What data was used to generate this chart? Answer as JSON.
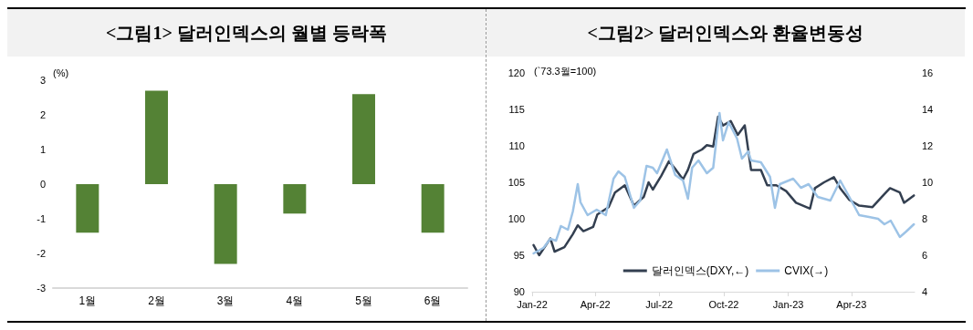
{
  "chart_data": [
    {
      "type": "bar",
      "title": "<그림1> 달러인덱스의 월별 등락폭",
      "ylabel": "(%)",
      "categories": [
        "1월",
        "2월",
        "3월",
        "4월",
        "5월",
        "6월"
      ],
      "values": [
        -1.4,
        2.7,
        -2.3,
        -0.85,
        2.6,
        -1.4
      ],
      "color": "#548235",
      "ylim": [
        -3,
        3
      ],
      "yticks": [
        -3,
        -2,
        -1,
        0,
        1,
        2,
        3
      ],
      "grid": false,
      "legend": false
    },
    {
      "type": "line",
      "title": "<그림2> 달러인덱스와 환율변동성",
      "ylabel": "(`73.3월=100)",
      "xlim": [
        "2022-01-01",
        "2023-06-30"
      ],
      "xticks": [
        {
          "value": "2022-01-01",
          "label": "Jan-22"
        },
        {
          "value": "2022-04-01",
          "label": "Apr-22"
        },
        {
          "value": "2022-07-01",
          "label": "Jul-22"
        },
        {
          "value": "2022-10-01",
          "label": "Oct-22"
        },
        {
          "value": "2023-01-01",
          "label": "Jan-23"
        },
        {
          "value": "2023-04-01",
          "label": "Apr-23"
        }
      ],
      "ylim": [
        90,
        120
      ],
      "yticks": [
        90,
        95,
        100,
        105,
        110,
        115,
        120
      ],
      "y2lim": [
        4,
        16
      ],
      "y2ticks": [
        4,
        6,
        8,
        10,
        12,
        14,
        16
      ],
      "grid": false,
      "legend": "bottom",
      "line_style": "solid",
      "marker": "none",
      "series": [
        {
          "name": "달러인덱스(DXY,←)",
          "color": "#333f50",
          "x": [
            "2022-01-03",
            "2022-01-11",
            "2022-01-27",
            "2022-02-02",
            "2022-02-16",
            "2022-02-28",
            "2022-03-07",
            "2022-03-15",
            "2022-03-29",
            "2022-04-04",
            "2022-04-20",
            "2022-04-29",
            "2022-05-13",
            "2022-05-26",
            "2022-06-09",
            "2022-06-16",
            "2022-06-22",
            "2022-07-04",
            "2022-07-15",
            "2022-07-25",
            "2022-08-04",
            "2022-08-11",
            "2022-08-19",
            "2022-08-31",
            "2022-09-07",
            "2022-09-16",
            "2022-09-23",
            "2022-09-30",
            "2022-10-11",
            "2022-10-21",
            "2022-10-31",
            "2022-11-09",
            "2022-11-23",
            "2022-12-02",
            "2022-12-15",
            "2022-12-29",
            "2023-01-12",
            "2023-02-01",
            "2023-02-08",
            "2023-02-21",
            "2023-03-07",
            "2023-03-16",
            "2023-03-29",
            "2023-04-12",
            "2023-05-01",
            "2023-05-18",
            "2023-05-26",
            "2023-06-09",
            "2023-06-15",
            "2023-06-29"
          ],
          "values": [
            96.4,
            95.0,
            97.3,
            95.5,
            96.1,
            97.9,
            99.1,
            98.3,
            98.9,
            100.6,
            101.6,
            103.6,
            104.6,
            101.8,
            103.0,
            105.0,
            104.0,
            105.9,
            107.9,
            106.7,
            105.4,
            106.7,
            108.9,
            109.5,
            110.1,
            109.9,
            114.0,
            112.8,
            113.4,
            111.5,
            112.8,
            106.7,
            106.7,
            104.6,
            104.6,
            103.8,
            102.2,
            101.4,
            104.2,
            105.0,
            105.7,
            104.2,
            102.6,
            101.8,
            101.6,
            103.4,
            104.2,
            103.6,
            102.2,
            103.2
          ]
        },
        {
          "name": "CVIX(→)",
          "color": "#9dc3e6",
          "axis": "y2",
          "x": [
            "2022-01-03",
            "2022-01-17",
            "2022-01-27",
            "2022-02-04",
            "2022-02-11",
            "2022-02-21",
            "2022-02-28",
            "2022-03-07",
            "2022-03-11",
            "2022-03-21",
            "2022-04-03",
            "2022-04-16",
            "2022-04-27",
            "2022-05-04",
            "2022-05-13",
            "2022-05-26",
            "2022-06-04",
            "2022-06-13",
            "2022-06-22",
            "2022-06-28",
            "2022-07-12",
            "2022-07-24",
            "2022-08-04",
            "2022-08-11",
            "2022-08-17",
            "2022-08-26",
            "2022-09-07",
            "2022-09-16",
            "2022-09-25",
            "2022-09-30",
            "2022-10-08",
            "2022-10-20",
            "2022-10-27",
            "2022-11-05",
            "2022-11-09",
            "2022-11-23",
            "2022-12-06",
            "2022-12-13",
            "2022-12-20",
            "2023-01-08",
            "2023-01-19",
            "2023-01-30",
            "2023-02-12",
            "2023-03-02",
            "2023-03-16",
            "2023-03-29",
            "2023-04-12",
            "2023-04-26",
            "2023-05-09",
            "2023-05-18",
            "2023-05-27",
            "2023-06-09",
            "2023-06-18",
            "2023-06-29"
          ],
          "values": [
            6.1,
            6.4,
            6.9,
            6.8,
            7.6,
            7.4,
            8.4,
            9.9,
            8.9,
            8.2,
            8.5,
            8.2,
            10.2,
            10.6,
            10.3,
            8.6,
            9.0,
            10.9,
            10.8,
            10.5,
            11.8,
            10.4,
            10.1,
            9.1,
            10.8,
            11.2,
            10.5,
            10.8,
            13.8,
            12.3,
            13.3,
            12.4,
            11.3,
            11.7,
            11.2,
            11.1,
            10.3,
            8.6,
            9.9,
            10.2,
            9.7,
            9.9,
            9.2,
            9.0,
            10.1,
            9.2,
            8.2,
            8.1,
            8.0,
            7.7,
            7.9,
            7.0,
            7.3,
            7.7
          ]
        }
      ]
    }
  ]
}
